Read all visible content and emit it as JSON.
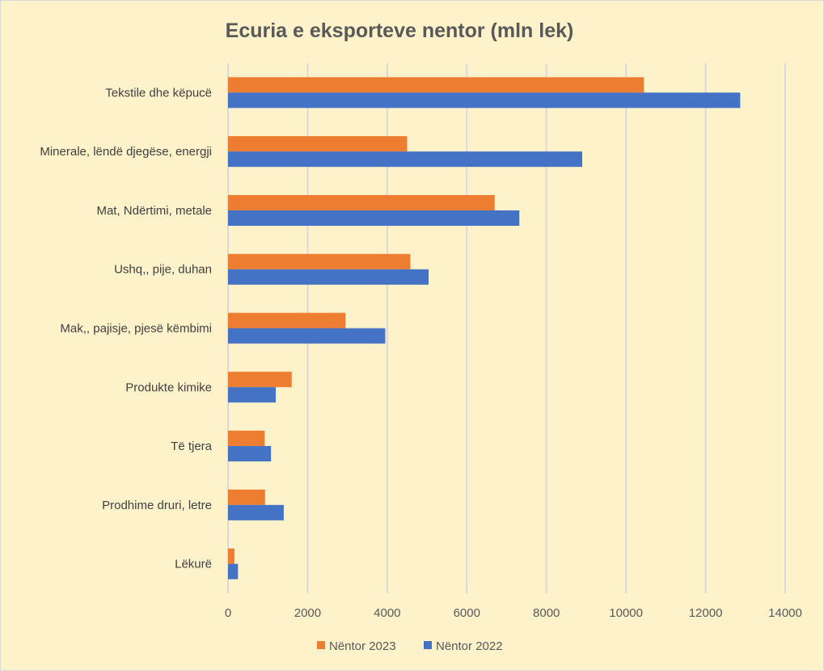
{
  "chart_data": {
    "type": "bar",
    "orientation": "horizontal",
    "title": "Ecuria e eksporteve nentor (mln lek)",
    "xlabel": "",
    "ylabel": "",
    "categories": [
      "Tekstile dhe këpucë",
      "Minerale, lëndë djegëse, energji",
      "Mat, Ndërtimi, metale",
      "Ushq,, pije, duhan",
      "Mak,, pajisje, pjesë këmbimi",
      "Produkte kimike",
      "Të tjera",
      "Prodhime druri, letre",
      "Lëkurë"
    ],
    "series": [
      {
        "name": "Nëntor 2023",
        "color": "#ed7d31",
        "values": [
          10450,
          4500,
          6700,
          4580,
          2950,
          1600,
          920,
          930,
          160
        ]
      },
      {
        "name": "Nëntor 2022",
        "color": "#4472c4",
        "values": [
          12870,
          8900,
          7320,
          5040,
          3950,
          1200,
          1080,
          1400,
          250
        ]
      }
    ],
    "xlim": [
      0,
      14000
    ],
    "xticks": [
      "0",
      "2000",
      "4000",
      "6000",
      "8000",
      "10000",
      "12000",
      "14000"
    ],
    "grid": "vertical",
    "legend": "bottom"
  }
}
